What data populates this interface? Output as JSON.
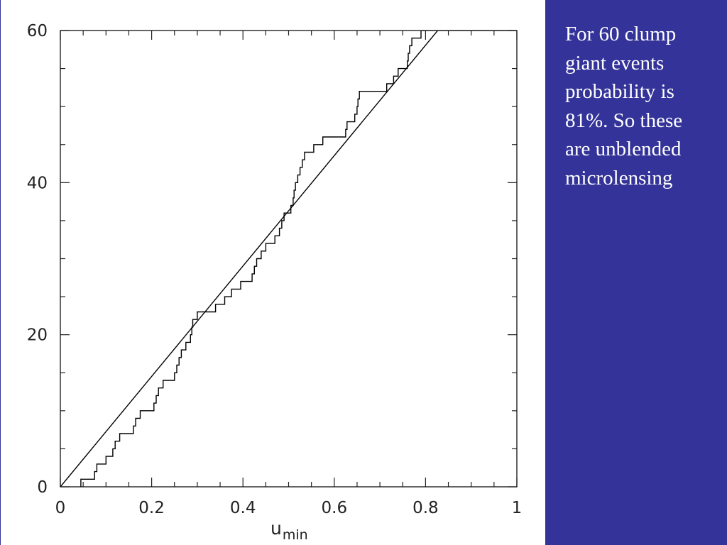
{
  "slide": {
    "caption_lines": [
      "For 60 clump",
      "giant events",
      "probability is",
      "81%.  So these",
      "are unblended",
      "microlensing"
    ],
    "background_color": "#333399",
    "text_color": "#ffffff"
  },
  "chart_data": {
    "type": "line",
    "title": "",
    "xlabel": "u",
    "xlabel_subscript": "min",
    "ylabel": "",
    "xlim": [
      0,
      1
    ],
    "ylim": [
      0,
      60
    ],
    "x_ticks": [
      0,
      0.2,
      0.4,
      0.6,
      0.8,
      1
    ],
    "x_tick_labels": [
      "0",
      "0.2",
      "0.4",
      "0.6",
      "0.8",
      "1"
    ],
    "y_ticks": [
      0,
      20,
      40,
      60
    ],
    "y_tick_labels": [
      "0",
      "20",
      "40",
      "60"
    ],
    "grid": false,
    "legend": "none",
    "series": [
      {
        "kind": "cumulative-step",
        "color": "#000000",
        "points": [
          [
            0.045,
            0
          ],
          [
            0.045,
            1
          ],
          [
            0.075,
            1
          ],
          [
            0.075,
            2
          ],
          [
            0.08,
            2
          ],
          [
            0.08,
            3
          ],
          [
            0.1,
            3
          ],
          [
            0.1,
            4
          ],
          [
            0.115,
            4
          ],
          [
            0.115,
            5
          ],
          [
            0.12,
            5
          ],
          [
            0.12,
            6
          ],
          [
            0.13,
            6
          ],
          [
            0.13,
            7
          ],
          [
            0.16,
            7
          ],
          [
            0.16,
            8
          ],
          [
            0.165,
            8
          ],
          [
            0.165,
            9
          ],
          [
            0.175,
            9
          ],
          [
            0.175,
            10
          ],
          [
            0.205,
            10
          ],
          [
            0.205,
            11
          ],
          [
            0.21,
            11
          ],
          [
            0.21,
            12
          ],
          [
            0.215,
            12
          ],
          [
            0.215,
            13
          ],
          [
            0.225,
            13
          ],
          [
            0.225,
            14
          ],
          [
            0.25,
            14
          ],
          [
            0.25,
            15
          ],
          [
            0.255,
            15
          ],
          [
            0.255,
            16
          ],
          [
            0.26,
            16
          ],
          [
            0.26,
            17
          ],
          [
            0.265,
            17
          ],
          [
            0.265,
            18
          ],
          [
            0.275,
            18
          ],
          [
            0.275,
            19
          ],
          [
            0.285,
            19
          ],
          [
            0.285,
            20
          ],
          [
            0.288,
            20
          ],
          [
            0.288,
            21
          ],
          [
            0.29,
            21
          ],
          [
            0.29,
            22
          ],
          [
            0.3,
            22
          ],
          [
            0.3,
            23
          ],
          [
            0.34,
            23
          ],
          [
            0.34,
            24
          ],
          [
            0.36,
            24
          ],
          [
            0.36,
            25
          ],
          [
            0.375,
            25
          ],
          [
            0.375,
            26
          ],
          [
            0.395,
            26
          ],
          [
            0.395,
            27
          ],
          [
            0.42,
            27
          ],
          [
            0.42,
            28
          ],
          [
            0.425,
            28
          ],
          [
            0.425,
            29
          ],
          [
            0.43,
            29
          ],
          [
            0.43,
            30
          ],
          [
            0.44,
            30
          ],
          [
            0.44,
            31
          ],
          [
            0.45,
            31
          ],
          [
            0.45,
            32
          ],
          [
            0.47,
            32
          ],
          [
            0.47,
            33
          ],
          [
            0.48,
            33
          ],
          [
            0.48,
            34
          ],
          [
            0.485,
            34
          ],
          [
            0.485,
            35
          ],
          [
            0.49,
            35
          ],
          [
            0.49,
            36
          ],
          [
            0.505,
            36
          ],
          [
            0.505,
            37
          ],
          [
            0.51,
            37
          ],
          [
            0.51,
            38
          ],
          [
            0.512,
            38
          ],
          [
            0.512,
            39
          ],
          [
            0.515,
            39
          ],
          [
            0.515,
            40
          ],
          [
            0.52,
            40
          ],
          [
            0.52,
            41
          ],
          [
            0.525,
            41
          ],
          [
            0.525,
            42
          ],
          [
            0.53,
            42
          ],
          [
            0.53,
            43
          ],
          [
            0.535,
            43
          ],
          [
            0.535,
            44
          ],
          [
            0.555,
            44
          ],
          [
            0.555,
            45
          ],
          [
            0.575,
            45
          ],
          [
            0.575,
            46
          ],
          [
            0.625,
            46
          ],
          [
            0.625,
            47
          ],
          [
            0.628,
            47
          ],
          [
            0.628,
            48
          ],
          [
            0.645,
            48
          ],
          [
            0.645,
            49
          ],
          [
            0.65,
            49
          ],
          [
            0.65,
            50
          ],
          [
            0.652,
            50
          ],
          [
            0.652,
            51
          ],
          [
            0.655,
            51
          ],
          [
            0.655,
            52
          ],
          [
            0.715,
            52
          ],
          [
            0.715,
            53
          ],
          [
            0.73,
            53
          ],
          [
            0.73,
            54
          ],
          [
            0.74,
            54
          ],
          [
            0.74,
            55
          ],
          [
            0.76,
            55
          ],
          [
            0.76,
            56
          ],
          [
            0.762,
            56
          ],
          [
            0.762,
            57
          ],
          [
            0.765,
            57
          ],
          [
            0.765,
            58
          ],
          [
            0.77,
            58
          ],
          [
            0.77,
            59
          ],
          [
            0.79,
            59
          ],
          [
            0.79,
            60
          ],
          [
            1.0,
            60
          ]
        ]
      },
      {
        "kind": "straight-line",
        "color": "#000000",
        "points": [
          [
            0,
            0
          ],
          [
            0.868,
            63
          ]
        ]
      }
    ]
  }
}
